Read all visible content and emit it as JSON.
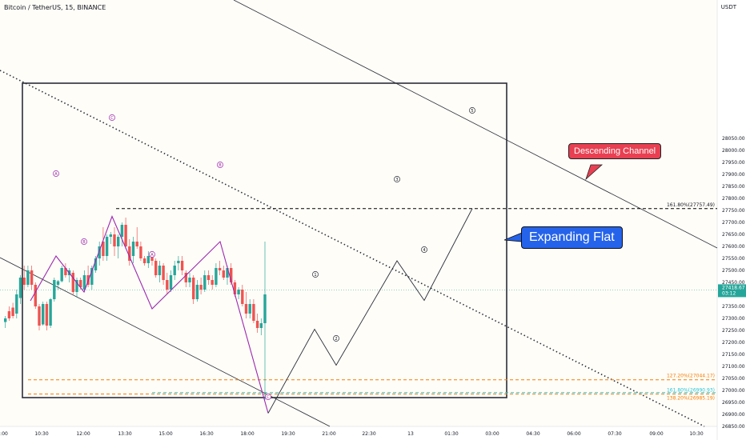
{
  "header": {
    "title": "Bitcoin / TetherUS, 15, BINANCE",
    "currency": "USDT"
  },
  "callouts": {
    "descending_channel": "Descending Channel",
    "expanding_flat": "Expanding Flat"
  },
  "price_axis": {
    "ticks": [
      "28050.00",
      "28000.00",
      "27950.00",
      "27900.00",
      "27850.00",
      "27800.00",
      "27750.00",
      "27700.00",
      "27650.00",
      "27600.00",
      "27550.00",
      "27500.00",
      "27450.00",
      "27400.00",
      "27350.00",
      "27300.00",
      "27250.00",
      "27200.00",
      "27150.00",
      "27100.00",
      "27050.00",
      "27000.00",
      "26950.00",
      "26900.00",
      "26850.00"
    ],
    "current_price": "27418.67",
    "countdown": "03:12"
  },
  "time_axis": {
    "ticks": [
      ":00",
      "10:30",
      "12:00",
      "13:30",
      "15:00",
      "16:30",
      "18:00",
      "19:30",
      "21:00",
      "22:30",
      "13",
      "01:30",
      "03:00",
      "04:30",
      "06:00",
      "07:30",
      "09:00",
      "10:30"
    ]
  },
  "colors": {
    "up": "#26a69a",
    "down": "#ef5350",
    "wave": "#9c27b0",
    "fib_orange": "#f57c00",
    "fib_teal": "#26c6da",
    "callout_red": "#e84052",
    "callout_blue": "#2563eb"
  },
  "chart_data": {
    "type": "candlestick",
    "ylim": [
      26825,
      28080
    ],
    "candles": [
      [
        27285,
        27310,
        27260,
        27300
      ],
      [
        27330,
        27350,
        27290,
        27300
      ],
      [
        27345,
        27365,
        27300,
        27310
      ],
      [
        27320,
        27420,
        27300,
        27400
      ],
      [
        27385,
        27480,
        27360,
        27470
      ],
      [
        27470,
        27520,
        27420,
        27440
      ],
      [
        27440,
        27520,
        27430,
        27500
      ],
      [
        27500,
        27520,
        27420,
        27440
      ],
      [
        27440,
        27450,
        27340,
        27350
      ],
      [
        27350,
        27360,
        27250,
        27270
      ],
      [
        27275,
        27370,
        27270,
        27360
      ],
      [
        27360,
        27370,
        27250,
        27270
      ],
      [
        27270,
        27385,
        27260,
        27380
      ],
      [
        27380,
        27470,
        27370,
        27460
      ],
      [
        27440,
        27460,
        27420,
        27455
      ],
      [
        27455,
        27520,
        27450,
        27510
      ],
      [
        27510,
        27530,
        27470,
        27480
      ],
      [
        27480,
        27510,
        27450,
        27500
      ],
      [
        27490,
        27500,
        27400,
        27410
      ],
      [
        27410,
        27470,
        27390,
        27460
      ],
      [
        27460,
        27470,
        27420,
        27430
      ],
      [
        27420,
        27500,
        27410,
        27480
      ],
      [
        27480,
        27520,
        27430,
        27440
      ],
      [
        27440,
        27520,
        27420,
        27510
      ],
      [
        27500,
        27560,
        27490,
        27550
      ],
      [
        27550,
        27620,
        27520,
        27600
      ],
      [
        27620,
        27680,
        27540,
        27560
      ],
      [
        27560,
        27650,
        27540,
        27640
      ],
      [
        27640,
        27660,
        27610,
        27650
      ],
      [
        27650,
        27680,
        27560,
        27600
      ],
      [
        27600,
        27650,
        27550,
        27640
      ],
      [
        27640,
        27700,
        27600,
        27690
      ],
      [
        27690,
        27720,
        27590,
        27600
      ],
      [
        27600,
        27630,
        27520,
        27540
      ],
      [
        27560,
        27640,
        27530,
        27620
      ],
      [
        27620,
        27680,
        27590,
        27600
      ],
      [
        27600,
        27620,
        27540,
        27550
      ],
      [
        27550,
        27560,
        27520,
        27530
      ],
      [
        27530,
        27580,
        27510,
        27560
      ],
      [
        27560,
        27580,
        27520,
        27540
      ],
      [
        27540,
        27550,
        27470,
        27480
      ],
      [
        27480,
        27540,
        27450,
        27520
      ],
      [
        27520,
        27530,
        27440,
        27460
      ],
      [
        27460,
        27490,
        27400,
        27420
      ],
      [
        27420,
        27500,
        27410,
        27480
      ],
      [
        27480,
        27540,
        27460,
        27520
      ],
      [
        27530,
        27560,
        27500,
        27540
      ],
      [
        27540,
        27560,
        27480,
        27500
      ],
      [
        27490,
        27500,
        27430,
        27450
      ],
      [
        27450,
        27490,
        27430,
        27470
      ],
      [
        27470,
        27480,
        27360,
        27380
      ],
      [
        27380,
        27460,
        27370,
        27440
      ],
      [
        27440,
        27470,
        27400,
        27420
      ],
      [
        27420,
        27500,
        27410,
        27480
      ],
      [
        27480,
        27500,
        27440,
        27460
      ],
      [
        27460,
        27480,
        27420,
        27440
      ],
      [
        27440,
        27530,
        27430,
        27510
      ],
      [
        27510,
        27540,
        27480,
        27500
      ],
      [
        27500,
        27520,
        27460,
        27470
      ],
      [
        27470,
        27520,
        27440,
        27510
      ],
      [
        27510,
        27530,
        27440,
        27450
      ],
      [
        27450,
        27460,
        27390,
        27400
      ],
      [
        27400,
        27430,
        27380,
        27420
      ],
      [
        27420,
        27440,
        27350,
        27360
      ],
      [
        27360,
        27410,
        27300,
        27320
      ],
      [
        27320,
        27380,
        27300,
        27360
      ],
      [
        27360,
        27380,
        27280,
        27290
      ],
      [
        27290,
        27320,
        27240,
        27260
      ],
      [
        27260,
        27300,
        27230,
        27280
      ],
      [
        27280,
        27620,
        26960,
        27400
      ]
    ],
    "waves": [
      {
        "label": "A",
        "price": 27560
      },
      {
        "label": "B",
        "price": 27410
      },
      {
        "label": "C",
        "price": 27725
      },
      {
        "label": "A",
        "price": 27340
      },
      {
        "label": "B",
        "price": 27620
      },
      {
        "label": "C",
        "price": 26905
      }
    ],
    "projection": [
      {
        "label": "1",
        "price": 27255
      },
      {
        "label": "2",
        "price": 27105
      },
      {
        "label": "3",
        "price": 27540
      },
      {
        "label": "4",
        "price": 27375
      },
      {
        "label": "5",
        "price": 27757.49
      }
    ],
    "fib_levels": [
      {
        "label": "161.80%(27757.49)",
        "price": 27757.49,
        "color": "#000000"
      },
      {
        "label": "127.20%(27044.17)",
        "price": 27044.17,
        "color": "#f57c00"
      },
      {
        "label": "161.80%(26990.93)",
        "price": 26990.93,
        "color": "#26c6da"
      },
      {
        "label": "138.20%(26985.19)",
        "price": 26985.19,
        "color": "#f57c00"
      }
    ]
  }
}
